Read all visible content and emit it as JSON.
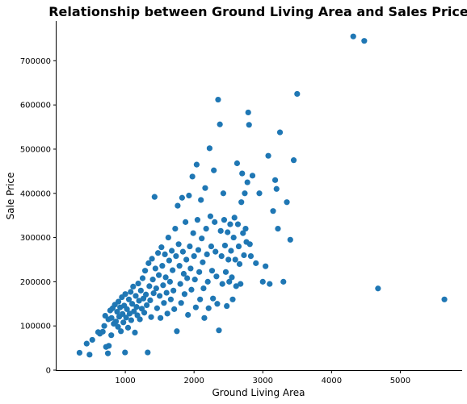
{
  "chart_data": {
    "type": "scatter",
    "title": "Relationship between Ground Living Area and Sales Price",
    "xlabel": "Ground Living Area",
    "ylabel": "Sale Price",
    "xlim": [
      0,
      5900
    ],
    "ylim": [
      0,
      790000
    ],
    "xticks": [
      1000,
      2000,
      3000,
      4000,
      5000
    ],
    "yticks": [
      0,
      100000,
      200000,
      300000,
      400000,
      500000,
      600000,
      700000
    ],
    "grid": false,
    "color": "#1f77b4",
    "series": [
      {
        "points": [
          [
            334,
            39300
          ],
          [
            438,
            60000
          ],
          [
            480,
            35000
          ],
          [
            520,
            68500
          ],
          [
            605,
            86000
          ],
          [
            630,
            82500
          ],
          [
            672,
            87000
          ],
          [
            694,
            100000
          ],
          [
            708,
            123000
          ],
          [
            720,
            52500
          ],
          [
            747,
            37900
          ],
          [
            754,
            115000
          ],
          [
            760,
            55000
          ],
          [
            780,
            135000
          ],
          [
            796,
            79000
          ],
          [
            800,
            118000
          ],
          [
            816,
            140000
          ],
          [
            832,
            105000
          ],
          [
            848,
            148000
          ],
          [
            864,
            110000
          ],
          [
            882,
            132000
          ],
          [
            894,
            98000
          ],
          [
            900,
            155000
          ],
          [
            912,
            121000
          ],
          [
            925,
            142000
          ],
          [
            936,
            88000
          ],
          [
            950,
            165000
          ],
          [
            960,
            127000
          ],
          [
            972,
            108000
          ],
          [
            984,
            146000
          ],
          [
            996,
            40000
          ],
          [
            1000,
            172000
          ],
          [
            1012,
            119000
          ],
          [
            1024,
            138000
          ],
          [
            1040,
            96000
          ],
          [
            1052,
            160000
          ],
          [
            1064,
            128000
          ],
          [
            1078,
            177000
          ],
          [
            1086,
            113000
          ],
          [
            1100,
            150000
          ],
          [
            1114,
            189000
          ],
          [
            1126,
            133000
          ],
          [
            1140,
            85000
          ],
          [
            1152,
            168000
          ],
          [
            1164,
            143000
          ],
          [
            1176,
            124000
          ],
          [
            1188,
            196000
          ],
          [
            1200,
            157000
          ],
          [
            1212,
            115000
          ],
          [
            1226,
            180000
          ],
          [
            1240,
            139000
          ],
          [
            1252,
            208000
          ],
          [
            1264,
            162000
          ],
          [
            1276,
            130000
          ],
          [
            1288,
            225000
          ],
          [
            1300,
            171000
          ],
          [
            1312,
            147000
          ],
          [
            1326,
            40000
          ],
          [
            1338,
            242000
          ],
          [
            1350,
            190000
          ],
          [
            1362,
            158000
          ],
          [
            1376,
            120000
          ],
          [
            1388,
            252000
          ],
          [
            1400,
            205000
          ],
          [
            1412,
            174000
          ],
          [
            1426,
            392000
          ],
          [
            1438,
            230000
          ],
          [
            1450,
            185000
          ],
          [
            1462,
            140000
          ],
          [
            1476,
            265000
          ],
          [
            1488,
            215000
          ],
          [
            1500,
            168000
          ],
          [
            1512,
            118000
          ],
          [
            1526,
            278000
          ],
          [
            1538,
            236000
          ],
          [
            1550,
            192000
          ],
          [
            1562,
            152000
          ],
          [
            1576,
            262000
          ],
          [
            1588,
            210000
          ],
          [
            1600,
            175000
          ],
          [
            1612,
            128000
          ],
          [
            1626,
            300000
          ],
          [
            1638,
            248000
          ],
          [
            1650,
            200000
          ],
          [
            1662,
            160000
          ],
          [
            1676,
            270000
          ],
          [
            1688,
            226000
          ],
          [
            1700,
            180000
          ],
          [
            1712,
            138000
          ],
          [
            1726,
            320000
          ],
          [
            1738,
            258000
          ],
          [
            1750,
            88000
          ],
          [
            1762,
            372000
          ],
          [
            1776,
            285000
          ],
          [
            1788,
            236000
          ],
          [
            1800,
            195000
          ],
          [
            1812,
            152000
          ],
          [
            1826,
            390000
          ],
          [
            1838,
            268000
          ],
          [
            1850,
            218000
          ],
          [
            1862,
            172000
          ],
          [
            1876,
            335000
          ],
          [
            1888,
            250000
          ],
          [
            1900,
            208000
          ],
          [
            1912,
            125000
          ],
          [
            1926,
            395000
          ],
          [
            1938,
            280000
          ],
          [
            1950,
            230000
          ],
          [
            1962,
            182000
          ],
          [
            1976,
            438000
          ],
          [
            1988,
            310000
          ],
          [
            2000,
            258000
          ],
          [
            2012,
            205000
          ],
          [
            2026,
            142000
          ],
          [
            2038,
            465000
          ],
          [
            2050,
            340000
          ],
          [
            2062,
            272000
          ],
          [
            2076,
            222000
          ],
          [
            2088,
            160000
          ],
          [
            2100,
            385000
          ],
          [
            2112,
            298000
          ],
          [
            2126,
            244000
          ],
          [
            2138,
            185000
          ],
          [
            2150,
            118000
          ],
          [
            2162,
            412000
          ],
          [
            2176,
            320000
          ],
          [
            2188,
            262000
          ],
          [
            2200,
            200000
          ],
          [
            2212,
            140000
          ],
          [
            2226,
            502000
          ],
          [
            2238,
            348000
          ],
          [
            2250,
            280000
          ],
          [
            2262,
            225000
          ],
          [
            2276,
            162000
          ],
          [
            2288,
            452000
          ],
          [
            2300,
            335000
          ],
          [
            2312,
            268000
          ],
          [
            2326,
            212000
          ],
          [
            2338,
            150000
          ],
          [
            2350,
            612000
          ],
          [
            2362,
            90000
          ],
          [
            2376,
            556000
          ],
          [
            2388,
            315000
          ],
          [
            2400,
            258000
          ],
          [
            2412,
            195000
          ],
          [
            2426,
            400000
          ],
          [
            2438,
            340000
          ],
          [
            2450,
            282000
          ],
          [
            2462,
            222000
          ],
          [
            2476,
            145000
          ],
          [
            2488,
            312000
          ],
          [
            2500,
            250000
          ],
          [
            2512,
            200000
          ],
          [
            2526,
            330000
          ],
          [
            2538,
            270000
          ],
          [
            2550,
            210000
          ],
          [
            2562,
            160000
          ],
          [
            2576,
            300000
          ],
          [
            2588,
            345000
          ],
          [
            2600,
            250000
          ],
          [
            2612,
            190000
          ],
          [
            2626,
            468000
          ],
          [
            2638,
            330000
          ],
          [
            2650,
            280000
          ],
          [
            2662,
            240000
          ],
          [
            2676,
            195000
          ],
          [
            2688,
            380000
          ],
          [
            2700,
            445000
          ],
          [
            2712,
            310000
          ],
          [
            2726,
            260000
          ],
          [
            2738,
            400000
          ],
          [
            2750,
            320000
          ],
          [
            2762,
            290000
          ],
          [
            2776,
            425000
          ],
          [
            2788,
            583000
          ],
          [
            2800,
            555000
          ],
          [
            2812,
            285000
          ],
          [
            2826,
            258000
          ],
          [
            2850,
            440000
          ],
          [
            2900,
            242000
          ],
          [
            2950,
            400000
          ],
          [
            3000,
            200000
          ],
          [
            3040,
            235000
          ],
          [
            3080,
            485000
          ],
          [
            3100,
            195000
          ],
          [
            3150,
            360000
          ],
          [
            3180,
            430000
          ],
          [
            3200,
            410000
          ],
          [
            3220,
            320000
          ],
          [
            3250,
            538000
          ],
          [
            3300,
            200000
          ],
          [
            3350,
            380000
          ],
          [
            3400,
            295000
          ],
          [
            3450,
            475000
          ],
          [
            3500,
            625000
          ],
          [
            4316,
            755000
          ],
          [
            4476,
            745000
          ],
          [
            4676,
            184750
          ],
          [
            5642,
            160000
          ]
        ]
      }
    ]
  }
}
